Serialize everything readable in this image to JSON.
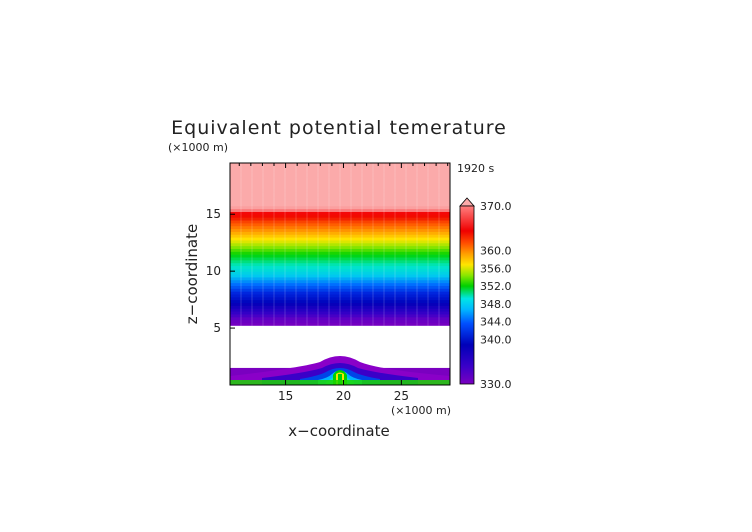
{
  "chart_data": {
    "type": "heatmap",
    "title": "Equivalent potential temerature",
    "time_label": "1920 s",
    "x_unit": "(×1000 m)",
    "y_unit": "(×1000 m)",
    "xlabel": "x−coordinate",
    "ylabel": "z−coordinate",
    "x_ticks": [
      "15",
      "20",
      "25"
    ],
    "x_tick_values": [
      15,
      20,
      25
    ],
    "y_ticks": [
      "5",
      "10",
      "15"
    ],
    "y_tick_values": [
      5,
      10,
      15
    ],
    "xlim": [
      10.2,
      29.2
    ],
    "ylim": [
      0,
      19.5
    ],
    "colorbar_labels": [
      "370.0",
      "360.0",
      "356.0",
      "352.0",
      "348.0",
      "344.0",
      "340.0",
      "330.0"
    ],
    "colorbar_label_values": [
      370,
      360,
      356,
      352,
      348,
      344,
      340,
      330
    ],
    "colorbar_range": [
      330,
      370
    ],
    "stratification": [
      {
        "z": 0.0,
        "theta": 330
      },
      {
        "z": 5.2,
        "theta": 330
      },
      {
        "z": 5.8,
        "theta": 331
      },
      {
        "z": 6.5,
        "theta": 334
      },
      {
        "z": 7.5,
        "theta": 338
      },
      {
        "z": 8.5,
        "theta": 341
      },
      {
        "z": 10.0,
        "theta": 345
      },
      {
        "z": 11.5,
        "theta": 348
      },
      {
        "z": 12.5,
        "theta": 351
      },
      {
        "z": 13.5,
        "theta": 354
      },
      {
        "z": 14.5,
        "theta": 357
      },
      {
        "z": 15.3,
        "theta": 361
      },
      {
        "z": 15.7,
        "theta": 370
      },
      {
        "z": 19.5,
        "theta": 370
      }
    ],
    "masked_band_z": [
      1.5,
      5.2
    ],
    "colors": {
      "370": "#fbaaaa",
      "360": "#f40000",
      "356": "#f46e00",
      "352": "#f4e600",
      "348": "#1cd600",
      "344": "#00c8e6",
      "340": "#0028e0",
      "330": "#8a00c8"
    }
  }
}
